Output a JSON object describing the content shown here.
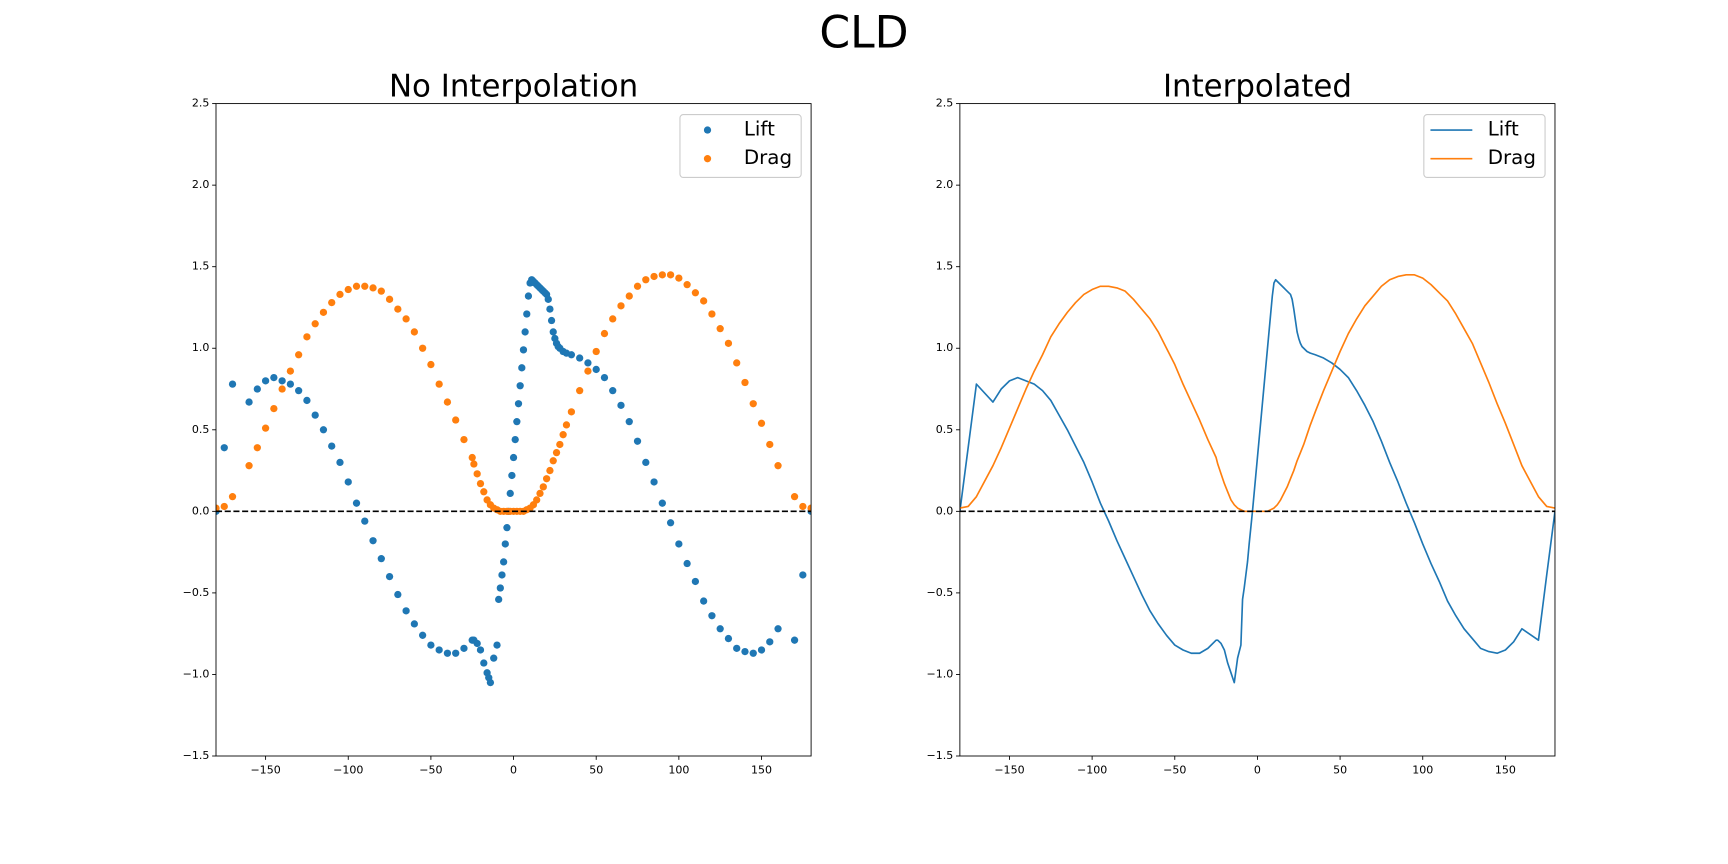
{
  "title": "CLD",
  "chart_data": [
    {
      "type": "scatter",
      "title": "No Interpolation",
      "xlim": [
        -180,
        180
      ],
      "ylim": [
        -1.5,
        2.5
      ],
      "xticks": [
        {
          "value": -150,
          "label": "−150"
        },
        {
          "value": -100,
          "label": "−100"
        },
        {
          "value": -50,
          "label": "−50"
        },
        0,
        50,
        100,
        150
      ],
      "yticks": [
        {
          "value": -1.5,
          "label": "−1.5"
        },
        {
          "value": -1,
          "label": "−1.0"
        },
        {
          "value": -0.5,
          "label": "−0.5"
        },
        {
          "value": 0,
          "label": "0.0"
        },
        0.5,
        {
          "value": 1,
          "label": "1.0"
        },
        1.5,
        {
          "value": 2,
          "label": "2.0"
        },
        2.5
      ],
      "hline": 0,
      "legend": "upper right",
      "series": [
        {
          "name": "Lift",
          "color": "#1f77b4",
          "x": [
            -180,
            -175,
            -170,
            -160,
            -155,
            -150,
            -145,
            -140,
            -135,
            -130,
            -125,
            -120,
            -115,
            -110,
            -105,
            -100,
            -95,
            -90,
            -85,
            -80,
            -75,
            -70,
            -65,
            -60,
            -55,
            -50,
            -45,
            -40,
            -35,
            -30,
            -25,
            -24,
            -22,
            -20,
            -18,
            -16,
            -15,
            -14,
            -12,
            -10,
            -9,
            -8,
            -7,
            -6,
            -5,
            -4,
            -3,
            -2,
            -1,
            0,
            1,
            2,
            3,
            4,
            5,
            6,
            7,
            8,
            9,
            10,
            11,
            12,
            13,
            14,
            15,
            16,
            17,
            18,
            19,
            20,
            21,
            22,
            23,
            24,
            25,
            26,
            27,
            28,
            30,
            32,
            35,
            40,
            45,
            50,
            55,
            60,
            65,
            70,
            75,
            80,
            85,
            90,
            95,
            100,
            105,
            110,
            115,
            120,
            125,
            130,
            135,
            140,
            145,
            150,
            155,
            160,
            170,
            175,
            180
          ],
          "values": [
            0,
            0.39,
            0.78,
            0.67,
            0.75,
            0.8,
            0.82,
            0.8,
            0.78,
            0.74,
            0.68,
            0.59,
            0.5,
            0.4,
            0.3,
            0.18,
            0.05,
            -0.06,
            -0.18,
            -0.29,
            -0.4,
            -0.51,
            -0.61,
            -0.69,
            -0.76,
            -0.82,
            -0.85,
            -0.87,
            -0.87,
            -0.84,
            -0.79,
            -0.79,
            -0.81,
            -0.85,
            -0.93,
            -0.99,
            -1.02,
            -1.05,
            -0.9,
            -0.82,
            -0.54,
            -0.47,
            -0.39,
            -0.31,
            -0.2,
            -0.1,
            0,
            0.11,
            0.22,
            0.33,
            0.44,
            0.55,
            0.66,
            0.77,
            0.88,
            0.99,
            1.1,
            1.21,
            1.32,
            1.4,
            1.42,
            1.41,
            1.4,
            1.39,
            1.38,
            1.37,
            1.36,
            1.35,
            1.34,
            1.33,
            1.3,
            1.24,
            1.17,
            1.1,
            1.06,
            1.03,
            1.01,
            1.0,
            0.98,
            0.97,
            0.96,
            0.94,
            0.91,
            0.87,
            0.82,
            0.74,
            0.65,
            0.55,
            0.43,
            0.3,
            0.18,
            0.05,
            -0.07,
            -0.2,
            -0.32,
            -0.43,
            -0.55,
            -0.64,
            -0.72,
            -0.78,
            -0.84,
            -0.86,
            -0.87,
            -0.85,
            -0.8,
            -0.72,
            -0.79,
            -0.39,
            0
          ]
        },
        {
          "name": "Drag",
          "color": "#ff7f0e",
          "x": [
            -180,
            -175,
            -170,
            -160,
            -155,
            -150,
            -145,
            -140,
            -135,
            -130,
            -125,
            -120,
            -115,
            -110,
            -105,
            -100,
            -95,
            -90,
            -85,
            -80,
            -75,
            -70,
            -65,
            -60,
            -55,
            -50,
            -45,
            -40,
            -35,
            -30,
            -25,
            -24,
            -22,
            -20,
            -18,
            -16,
            -14,
            -12,
            -10,
            -8,
            -6,
            -4,
            -2,
            0,
            2,
            4,
            6,
            8,
            10,
            12,
            14,
            16,
            18,
            20,
            22,
            24,
            26,
            28,
            30,
            32,
            35,
            40,
            45,
            50,
            55,
            60,
            65,
            70,
            75,
            80,
            85,
            90,
            95,
            100,
            105,
            110,
            115,
            120,
            125,
            130,
            135,
            140,
            145,
            150,
            155,
            160,
            170,
            175,
            180
          ],
          "values": [
            0.02,
            0.03,
            0.09,
            0.28,
            0.39,
            0.51,
            0.63,
            0.75,
            0.86,
            0.96,
            1.07,
            1.15,
            1.22,
            1.28,
            1.33,
            1.36,
            1.38,
            1.38,
            1.37,
            1.35,
            1.3,
            1.24,
            1.18,
            1.1,
            1.0,
            0.9,
            0.78,
            0.67,
            0.56,
            0.44,
            0.33,
            0.29,
            0.23,
            0.17,
            0.12,
            0.07,
            0.04,
            0.02,
            0.01,
            0,
            0,
            0,
            0,
            0,
            0,
            0,
            0,
            0.01,
            0.02,
            0.04,
            0.07,
            0.11,
            0.15,
            0.2,
            0.25,
            0.31,
            0.36,
            0.41,
            0.47,
            0.53,
            0.61,
            0.74,
            0.86,
            0.98,
            1.09,
            1.18,
            1.26,
            1.32,
            1.38,
            1.42,
            1.44,
            1.45,
            1.45,
            1.43,
            1.39,
            1.34,
            1.29,
            1.21,
            1.12,
            1.03,
            0.91,
            0.79,
            0.66,
            0.54,
            0.41,
            0.28,
            0.09,
            0.03,
            0.02
          ]
        }
      ]
    },
    {
      "type": "line",
      "title": "Interpolated",
      "xlim": [
        -180,
        180
      ],
      "ylim": [
        -1.5,
        2.5
      ],
      "xticks": [
        {
          "value": -150,
          "label": "−150"
        },
        {
          "value": -100,
          "label": "−100"
        },
        {
          "value": -50,
          "label": "−50"
        },
        0,
        50,
        100,
        150
      ],
      "yticks": [
        {
          "value": -1.5,
          "label": "−1.5"
        },
        {
          "value": -1,
          "label": "−1.0"
        },
        {
          "value": -0.5,
          "label": "−0.5"
        },
        {
          "value": 0,
          "label": "0.0"
        },
        0.5,
        {
          "value": 1,
          "label": "1.0"
        },
        1.5,
        {
          "value": 2,
          "label": "2.0"
        },
        2.5
      ],
      "hline": 0,
      "legend": "upper right",
      "series": [
        {
          "name": "Lift",
          "color": "#1f77b4",
          "x": [
            -180,
            -175,
            -170,
            -160,
            -155,
            -150,
            -145,
            -140,
            -135,
            -130,
            -125,
            -120,
            -115,
            -110,
            -105,
            -100,
            -95,
            -90,
            -85,
            -80,
            -75,
            -70,
            -65,
            -60,
            -55,
            -50,
            -45,
            -40,
            -35,
            -30,
            -25,
            -24,
            -22,
            -20,
            -18,
            -16,
            -15,
            -14,
            -12,
            -10,
            -9,
            -8,
            -7,
            -6,
            -5,
            -4,
            -3,
            -2,
            -1,
            0,
            1,
            2,
            3,
            4,
            5,
            6,
            7,
            8,
            9,
            10,
            11,
            12,
            13,
            14,
            15,
            16,
            17,
            18,
            19,
            20,
            21,
            22,
            23,
            24,
            25,
            26,
            27,
            28,
            30,
            32,
            35,
            40,
            45,
            50,
            55,
            60,
            65,
            70,
            75,
            80,
            85,
            90,
            95,
            100,
            105,
            110,
            115,
            120,
            125,
            130,
            135,
            140,
            145,
            150,
            155,
            160,
            170,
            175,
            180
          ],
          "values": [
            0,
            0.39,
            0.78,
            0.67,
            0.75,
            0.8,
            0.82,
            0.8,
            0.78,
            0.74,
            0.68,
            0.59,
            0.5,
            0.4,
            0.3,
            0.18,
            0.05,
            -0.06,
            -0.18,
            -0.29,
            -0.4,
            -0.51,
            -0.61,
            -0.69,
            -0.76,
            -0.82,
            -0.85,
            -0.87,
            -0.87,
            -0.84,
            -0.79,
            -0.79,
            -0.81,
            -0.85,
            -0.93,
            -0.99,
            -1.02,
            -1.05,
            -0.9,
            -0.82,
            -0.54,
            -0.47,
            -0.39,
            -0.31,
            -0.2,
            -0.1,
            0,
            0.11,
            0.22,
            0.33,
            0.44,
            0.55,
            0.66,
            0.77,
            0.88,
            0.99,
            1.1,
            1.21,
            1.32,
            1.4,
            1.42,
            1.41,
            1.4,
            1.39,
            1.38,
            1.37,
            1.36,
            1.35,
            1.34,
            1.33,
            1.3,
            1.24,
            1.17,
            1.1,
            1.06,
            1.03,
            1.01,
            1.0,
            0.98,
            0.97,
            0.96,
            0.94,
            0.91,
            0.87,
            0.82,
            0.74,
            0.65,
            0.55,
            0.43,
            0.3,
            0.18,
            0.05,
            -0.07,
            -0.2,
            -0.32,
            -0.43,
            -0.55,
            -0.64,
            -0.72,
            -0.78,
            -0.84,
            -0.86,
            -0.87,
            -0.85,
            -0.8,
            -0.72,
            -0.79,
            -0.39,
            0
          ]
        },
        {
          "name": "Drag",
          "color": "#ff7f0e",
          "x": [
            -180,
            -175,
            -170,
            -160,
            -155,
            -150,
            -145,
            -140,
            -135,
            -130,
            -125,
            -120,
            -115,
            -110,
            -105,
            -100,
            -95,
            -90,
            -85,
            -80,
            -75,
            -70,
            -65,
            -60,
            -55,
            -50,
            -45,
            -40,
            -35,
            -30,
            -25,
            -24,
            -22,
            -20,
            -18,
            -16,
            -14,
            -12,
            -10,
            -8,
            -6,
            -4,
            -2,
            0,
            2,
            4,
            6,
            8,
            10,
            12,
            14,
            16,
            18,
            20,
            22,
            24,
            26,
            28,
            30,
            32,
            35,
            40,
            45,
            50,
            55,
            60,
            65,
            70,
            75,
            80,
            85,
            90,
            95,
            100,
            105,
            110,
            115,
            120,
            125,
            130,
            135,
            140,
            145,
            150,
            155,
            160,
            170,
            175,
            180
          ],
          "values": [
            0.02,
            0.03,
            0.09,
            0.28,
            0.39,
            0.51,
            0.63,
            0.75,
            0.86,
            0.96,
            1.07,
            1.15,
            1.22,
            1.28,
            1.33,
            1.36,
            1.38,
            1.38,
            1.37,
            1.35,
            1.3,
            1.24,
            1.18,
            1.1,
            1.0,
            0.9,
            0.78,
            0.67,
            0.56,
            0.44,
            0.33,
            0.29,
            0.23,
            0.17,
            0.12,
            0.07,
            0.04,
            0.02,
            0.01,
            0,
            0,
            0,
            0,
            0,
            0,
            0,
            0,
            0.01,
            0.02,
            0.04,
            0.07,
            0.11,
            0.15,
            0.2,
            0.25,
            0.31,
            0.36,
            0.41,
            0.47,
            0.53,
            0.61,
            0.74,
            0.86,
            0.98,
            1.09,
            1.18,
            1.26,
            1.32,
            1.38,
            1.42,
            1.44,
            1.45,
            1.45,
            1.43,
            1.39,
            1.34,
            1.29,
            1.21,
            1.12,
            1.03,
            0.91,
            0.79,
            0.66,
            0.54,
            0.41,
            0.28,
            0.09,
            0.03,
            0.02
          ]
        }
      ]
    }
  ]
}
